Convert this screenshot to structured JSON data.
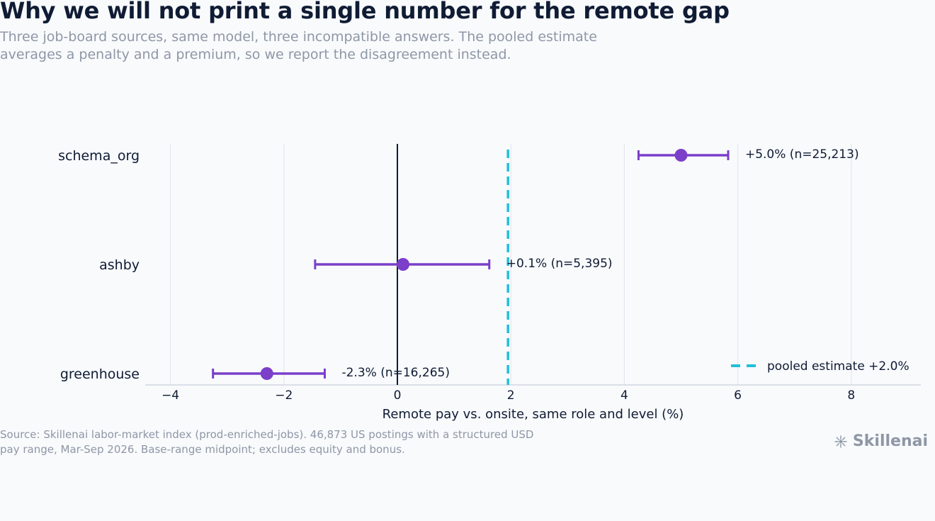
{
  "header": {
    "title": "Why we will not print a single number for the remote gap",
    "subtitle": "Three job-board sources, same model, three incompatible answers. The pooled estimate averages a penalty and a premium, so we report the disagreement instead."
  },
  "footer": {
    "source": "Source: Skillenai labor-market index (prod-enriched-jobs). 46,873 US postings with a structured USD pay range, Mar-Sep 2026. Base-range midpoint; excludes equity and bonus.",
    "brand": "Skillenai",
    "brand_icon": "sparkle-icon"
  },
  "colors": {
    "series": "#7b3fc9",
    "pooled": "#22c0d8",
    "zero_line": "#101c34",
    "grid": "#e3e7ee",
    "axis": "#c9d0dc",
    "text": "#0f1b33",
    "muted": "#8f97a6"
  },
  "chart_data": {
    "type": "scatter",
    "title": "",
    "xlabel": "Remote pay vs. onsite, same role and level (%)",
    "ylabel": "",
    "xlim": [
      -4.5,
      9.2
    ],
    "xticks": [
      -4,
      -2,
      0,
      2,
      4,
      6,
      8
    ],
    "xtick_labels": [
      "−4",
      "−2",
      "0",
      "2",
      "4",
      "6",
      "8"
    ],
    "grid": true,
    "legend_position": "bottom-right",
    "reference_line": {
      "x": 0
    },
    "pooled": {
      "value": 2.0,
      "label": "pooled estimate +2.0%"
    },
    "categories": [
      "schema_org",
      "ashby",
      "greenhouse"
    ],
    "series": [
      {
        "points": [
          {
            "category": "schema_org",
            "estimate": 5.0,
            "ci_low": 4.25,
            "ci_high": 5.83,
            "label": "+5.0%  (n=25,213)"
          },
          {
            "category": "ashby",
            "estimate": 0.1,
            "ci_low": -1.45,
            "ci_high": 1.62,
            "label": "+0.1%  (n=5,395)"
          },
          {
            "category": "greenhouse",
            "estimate": -2.3,
            "ci_low": -3.25,
            "ci_high": -1.28,
            "label": "-2.3%  (n=16,265)"
          }
        ]
      }
    ]
  }
}
